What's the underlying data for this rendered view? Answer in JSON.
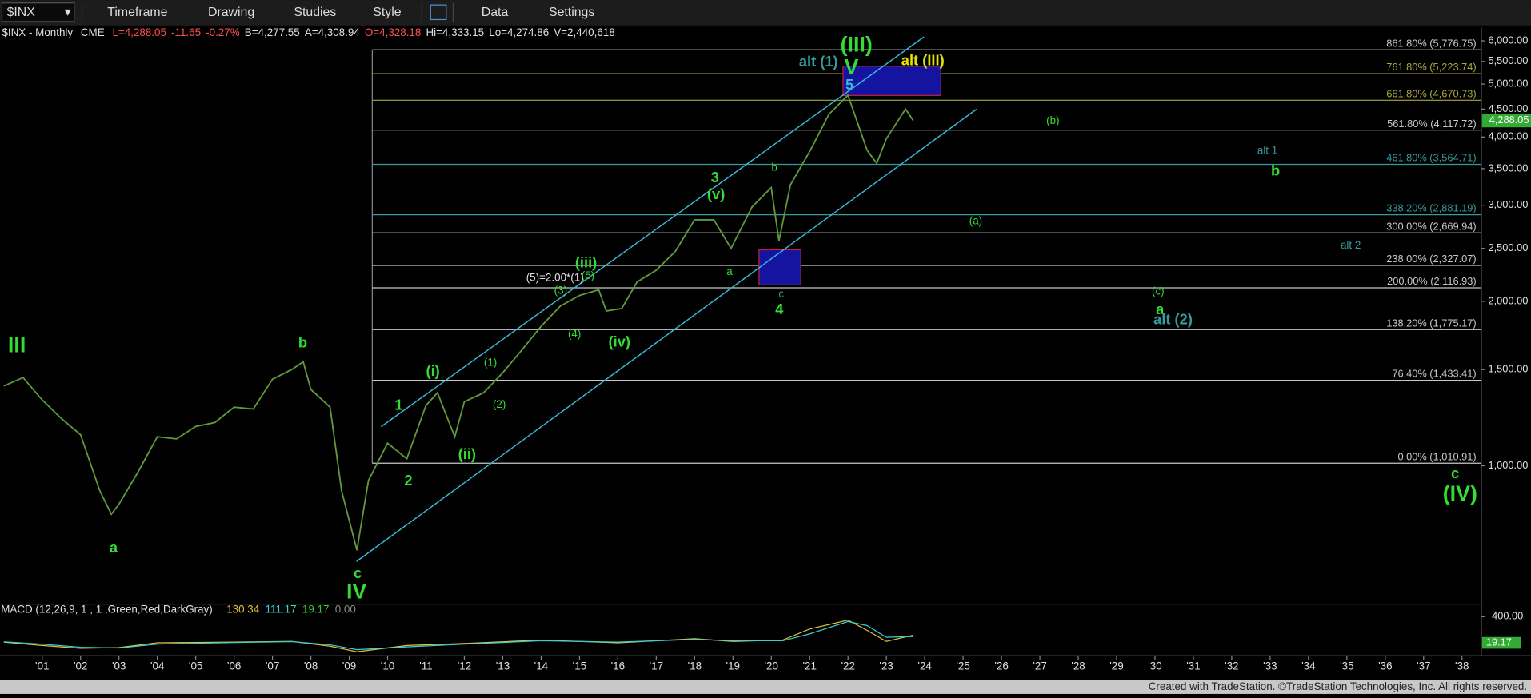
{
  "toolbar": {
    "symbol": "$INX",
    "buttons": [
      "Timeframe",
      "Drawing",
      "Studies",
      "Style",
      "Data",
      "Settings"
    ]
  },
  "footer": "Created with TradeStation. ©TradeStation Technologies, Inc. All rights reserved.",
  "chart_data": [
    {
      "type": "line",
      "symbol_info": "$INX - Monthly",
      "exchange": "CME",
      "quote": [
        {
          "text": "L=4,288.05",
          "color": "#ff5050"
        },
        {
          "text": "-11.65",
          "color": "#ff5050"
        },
        {
          "text": "-0.27%",
          "color": "#ff5050"
        },
        {
          "text": "B=4,277.55",
          "color": "#e0e0e0"
        },
        {
          "text": "A=4,308.94",
          "color": "#e0e0e0"
        },
        {
          "text": "O=4,328.18",
          "color": "#ff5050"
        },
        {
          "text": "Hi=4,333.15",
          "color": "#e0e0e0"
        },
        {
          "text": "Lo=4,274.86",
          "color": "#e0e0e0"
        },
        {
          "text": "V=2,440,618",
          "color": "#e0e0e0"
        }
      ],
      "log_scale": true,
      "color": "#5f9a3c",
      "x": [
        2000,
        2000.5,
        2001,
        2001.5,
        2002,
        2002.5,
        2002.8,
        2003,
        2003.5,
        2004,
        2004.5,
        2005,
        2005.5,
        2006,
        2006.5,
        2007,
        2007.5,
        2007.8,
        2008,
        2008.5,
        2008.8,
        2009.2,
        2009.5,
        2010,
        2010.5,
        2011,
        2011.3,
        2011.75,
        2012,
        2012.5,
        2013,
        2013.5,
        2014,
        2014.5,
        2015,
        2015.5,
        2015.7,
        2016.1,
        2016.5,
        2017,
        2017.5,
        2018,
        2018.5,
        2018.95,
        2019.5,
        2020,
        2020.2,
        2020.5,
        2021,
        2021.5,
        2022,
        2022.5,
        2022.75,
        2023,
        2023.5,
        2023.7
      ],
      "values": [
        1400,
        1450,
        1320,
        1220,
        1140,
        900,
        815,
        850,
        975,
        1130,
        1120,
        1180,
        1200,
        1280,
        1270,
        1440,
        1500,
        1550,
        1380,
        1280,
        900,
        700,
        940,
        1100,
        1030,
        1290,
        1360,
        1130,
        1310,
        1360,
        1480,
        1630,
        1800,
        1960,
        2050,
        2100,
        1920,
        1940,
        2170,
        2280,
        2470,
        2820,
        2820,
        2500,
        2980,
        3230,
        2580,
        3270,
        3760,
        4400,
        4770,
        3780,
        3580,
        3970,
        4500,
        4288.05
      ],
      "xlim": [
        1999.9,
        2038.5
      ],
      "xticks": [
        {
          "value": 2001,
          "label": "'01"
        },
        {
          "value": 2002,
          "label": "'02"
        },
        {
          "value": 2003,
          "label": "'03"
        },
        {
          "value": 2004,
          "label": "'04"
        },
        {
          "value": 2005,
          "label": "'05"
        },
        {
          "value": 2006,
          "label": "'06"
        },
        {
          "value": 2007,
          "label": "'07"
        },
        {
          "value": 2008,
          "label": "'08"
        },
        {
          "value": 2009,
          "label": "'09"
        },
        {
          "value": 2010,
          "label": "'10"
        },
        {
          "value": 2011,
          "label": "'11"
        },
        {
          "value": 2012,
          "label": "'12"
        },
        {
          "value": 2013,
          "label": "'13"
        },
        {
          "value": 2014,
          "label": "'14"
        },
        {
          "value": 2015,
          "label": "'15"
        },
        {
          "value": 2016,
          "label": "'16"
        },
        {
          "value": 2017,
          "label": "'17"
        },
        {
          "value": 2018,
          "label": "'18"
        },
        {
          "value": 2019,
          "label": "'19"
        },
        {
          "value": 2020,
          "label": "'20"
        },
        {
          "value": 2021,
          "label": "'21"
        },
        {
          "value": 2022,
          "label": "'22"
        },
        {
          "value": 2023,
          "label": "'23"
        },
        {
          "value": 2024,
          "label": "'24"
        },
        {
          "value": 2025,
          "label": "'25"
        },
        {
          "value": 2026,
          "label": "'26"
        },
        {
          "value": 2027,
          "label": "'27"
        },
        {
          "value": 2028,
          "label": "'28"
        },
        {
          "value": 2029,
          "label": "'29"
        },
        {
          "value": 2030,
          "label": "'30"
        },
        {
          "value": 2031,
          "label": "'31"
        },
        {
          "value": 2032,
          "label": "'32"
        },
        {
          "value": 2033,
          "label": "'33"
        },
        {
          "value": 2034,
          "label": "'34"
        },
        {
          "value": 2035,
          "label": "'35"
        },
        {
          "value": 2036,
          "label": "'36"
        },
        {
          "value": 2037,
          "label": "'37"
        },
        {
          "value": 2038,
          "label": "'38"
        }
      ],
      "ylim": [
        560,
        6350
      ],
      "yticks": [
        {
          "value": 1000,
          "label": "1,000.00"
        },
        {
          "value": 1500,
          "label": "1,500.00"
        },
        {
          "value": 2000,
          "label": "2,000.00"
        },
        {
          "value": 2500,
          "label": "2,500.00"
        },
        {
          "value": 3000,
          "label": "3,000.00"
        },
        {
          "value": 3500,
          "label": "3,500.00"
        },
        {
          "value": 4000,
          "label": "4,000.00"
        },
        {
          "value": 4500,
          "label": "4,500.00"
        },
        {
          "value": 5000,
          "label": "5,000.00"
        },
        {
          "value": 5500,
          "label": "5,500.00"
        },
        {
          "value": 6000,
          "label": "6,000.00"
        }
      ],
      "last_price": {
        "value": 4288.05,
        "label": "4,288.05"
      },
      "levels_start": 2009.6,
      "levels": [
        {
          "label": "861.80% (5,776.75)",
          "value": 5776.75,
          "color": "#c8c8c8"
        },
        {
          "label": "761.80% (5,223.74)",
          "value": 5223.74,
          "color": "#a8a840"
        },
        {
          "label": "661.80% (4,670.73)",
          "value": 4670.73,
          "color": "#a8a840"
        },
        {
          "label": "561.80% (4,117.72)",
          "value": 4117.72,
          "color": "#c8c8c8"
        },
        {
          "label": "461.80% (3,564.71)",
          "value": 3564.71,
          "color": "#3a9a9a"
        },
        {
          "label": "338.20% (2,881.19)",
          "value": 2881.19,
          "color": "#3a9a9a"
        },
        {
          "label": "300.00% (2,669.94)",
          "value": 2669.94,
          "color": "#c8c8c8"
        },
        {
          "label": "238.00% (2,327.07)",
          "value": 2327.07,
          "color": "#c8c8c8"
        },
        {
          "label": "200.00% (2,116.93)",
          "value": 2116.93,
          "color": "#c8c8c8"
        },
        {
          "label": "138.20% (1,775.17)",
          "value": 1775.17,
          "color": "#c8c8c8"
        },
        {
          "label": "76.40% (1,433.41)",
          "value": 1433.41,
          "color": "#c8c8c8"
        },
        {
          "label": "0.00% (1,010.91)",
          "value": 1010.91,
          "color": "#c8c8c8"
        }
      ],
      "trend_lines": [
        {
          "x": [
            2009.83,
            2023.98
          ],
          "y": [
            1179,
            6100
          ],
          "color": "#3ab8d8"
        },
        {
          "x": [
            2009.19,
            2025.35
          ],
          "y": [
            668,
            4498
          ],
          "color": "#3ab8d8"
        }
      ],
      "boxes": [
        {
          "x": [
            2019.68,
            2020.77
          ],
          "y": [
            2143,
            2485
          ]
        },
        {
          "x": [
            2021.87,
            2024.42
          ],
          "y": [
            4766,
            5391
          ]
        }
      ],
      "annotations": [
        {
          "text": "III",
          "x": 2000.34,
          "y": 1653,
          "color": "#33dd33",
          "font": "large"
        },
        {
          "text": "a",
          "x": 2002.86,
          "y": 705,
          "color": "#33dd33",
          "font": "medium"
        },
        {
          "text": "b",
          "x": 2007.79,
          "y": 1673,
          "color": "#33dd33",
          "font": "medium"
        },
        {
          "text": "c",
          "x": 2009.22,
          "y": 633,
          "color": "#33dd33",
          "font": "medium"
        },
        {
          "text": "IV",
          "x": 2009.19,
          "y": 585,
          "color": "#33dd33",
          "font": "large"
        },
        {
          "text": "1",
          "x": 2010.29,
          "y": 1286,
          "color": "#33dd33",
          "font": "medium"
        },
        {
          "text": "2",
          "x": 2010.54,
          "y": 936,
          "color": "#33dd33",
          "font": "medium"
        },
        {
          "text": "(i)",
          "x": 2011.18,
          "y": 1485,
          "color": "#33dd33",
          "font": "medium"
        },
        {
          "text": "(ii)",
          "x": 2012.07,
          "y": 1046,
          "color": "#33dd33",
          "font": "medium"
        },
        {
          "text": "(1)",
          "x": 2012.68,
          "y": 1541,
          "color": "#33dd33",
          "font": "small"
        },
        {
          "text": "(2)",
          "x": 2012.91,
          "y": 1291,
          "color": "#33dd33",
          "font": "small"
        },
        {
          "text": "(3)",
          "x": 2014.51,
          "y": 2090,
          "color": "#33dd33",
          "font": "small"
        },
        {
          "text": "(4)",
          "x": 2014.87,
          "y": 1737,
          "color": "#33dd33",
          "font": "small"
        },
        {
          "text": "(5)",
          "x": 2015.22,
          "y": 2223,
          "color": "#33dd33",
          "font": "small"
        },
        {
          "text": "(iii)",
          "x": 2015.17,
          "y": 2346,
          "color": "#33dd33",
          "font": "medium"
        },
        {
          "text": "(iv)",
          "x": 2016.04,
          "y": 1680,
          "color": "#33dd33",
          "font": "medium"
        },
        {
          "text": "(5)=2.00*(1)",
          "x": 2014.36,
          "y": 2205,
          "color": "#e0e0e0",
          "font": "small"
        },
        {
          "text": "3",
          "x": 2018.53,
          "y": 3357,
          "color": "#33dd33",
          "font": "medium"
        },
        {
          "text": "(v)",
          "x": 2018.56,
          "y": 3130,
          "color": "#33dd33",
          "font": "medium"
        },
        {
          "text": "a",
          "x": 2018.91,
          "y": 2260,
          "color": "#33dd33",
          "font": "small"
        },
        {
          "text": "b",
          "x": 2020.08,
          "y": 3512,
          "color": "#33dd33",
          "font": "small"
        },
        {
          "text": "c",
          "x": 2020.26,
          "y": 2056,
          "color": "#3a9a9a",
          "font": "small"
        },
        {
          "text": "4",
          "x": 2020.21,
          "y": 1925,
          "color": "#33dd33",
          "font": "medium"
        },
        {
          "text": "(III)",
          "x": 2022.22,
          "y": 5877,
          "color": "#33dd33",
          "font": "large"
        },
        {
          "text": "V",
          "x": 2022.09,
          "y": 5345,
          "color": "#33dd33",
          "font": "large"
        },
        {
          "text": "5",
          "x": 2022.04,
          "y": 4963,
          "color": "#3ab8d8",
          "font": "medium"
        },
        {
          "text": "alt (1)",
          "x": 2021.23,
          "y": 5480,
          "color": "#3a9a9a",
          "font": "medium"
        },
        {
          "text": "alt (III)",
          "x": 2023.95,
          "y": 5502,
          "color": "#e6e600",
          "font": "medium"
        },
        {
          "text": "(b)",
          "x": 2027.34,
          "y": 4280,
          "color": "#33dd33",
          "font": "small"
        },
        {
          "text": "(a)",
          "x": 2025.33,
          "y": 2800,
          "color": "#33dd33",
          "font": "small"
        },
        {
          "text": "alt 1",
          "x": 2032.93,
          "y": 3767,
          "color": "#3a9a9a",
          "font": "small"
        },
        {
          "text": "b",
          "x": 2033.14,
          "y": 3455,
          "color": "#33dd33",
          "font": "medium"
        },
        {
          "text": "alt 2",
          "x": 2035.1,
          "y": 2526,
          "color": "#3a9a9a",
          "font": "small"
        },
        {
          "text": "(c)",
          "x": 2030.08,
          "y": 2081,
          "color": "#33dd33",
          "font": "small"
        },
        {
          "text": "a",
          "x": 2030.13,
          "y": 1925,
          "color": "#33dd33",
          "font": "medium"
        },
        {
          "text": "alt (2)",
          "x": 2030.47,
          "y": 1847,
          "color": "#3a9a9a",
          "font": "medium"
        },
        {
          "text": "c",
          "x": 2037.82,
          "y": 964,
          "color": "#33dd33",
          "font": "medium"
        },
        {
          "text": "(IV)",
          "x": 2037.95,
          "y": 884,
          "color": "#33dd33",
          "font": "large"
        }
      ]
    },
    {
      "type": "line",
      "title": "MACD (12,26,9, 1 , 1 ,Green,Red,DarkGray)",
      "readouts": [
        {
          "text": "130.34",
          "color": "#e0c040"
        },
        {
          "text": "111.17",
          "color": "#3ad0d0"
        },
        {
          "text": "19.17",
          "color": "#33cc33"
        },
        {
          "text": "0.00",
          "color": "#888888"
        }
      ],
      "x": [
        2000,
        2001,
        2002,
        2003,
        2004,
        2006,
        2007.5,
        2008.5,
        2009.2,
        2010.5,
        2012,
        2014,
        2016,
        2018,
        2019,
        2020.3,
        2021,
        2022,
        2022.5,
        2023,
        2023.7
      ],
      "series": [
        {
          "color": "#e0c040",
          "values": [
            30,
            -20,
            -60,
            -50,
            20,
            30,
            40,
            -30,
            -110,
            -20,
            10,
            60,
            20,
            80,
            40,
            60,
            220,
            350,
            200,
            40,
            130.34
          ]
        },
        {
          "color": "#3ad0d0",
          "values": [
            35,
            0,
            -45,
            -55,
            0,
            25,
            38,
            -10,
            -80,
            -40,
            0,
            50,
            30,
            70,
            50,
            50,
            150,
            330,
            270,
            100,
            111.17
          ]
        }
      ],
      "ylim": [
        -170,
        540
      ],
      "yticks": [
        {
          "value": 400,
          "label": "400.00"
        }
      ],
      "value_tag": {
        "value": 19.17,
        "label": "19.17"
      }
    }
  ]
}
